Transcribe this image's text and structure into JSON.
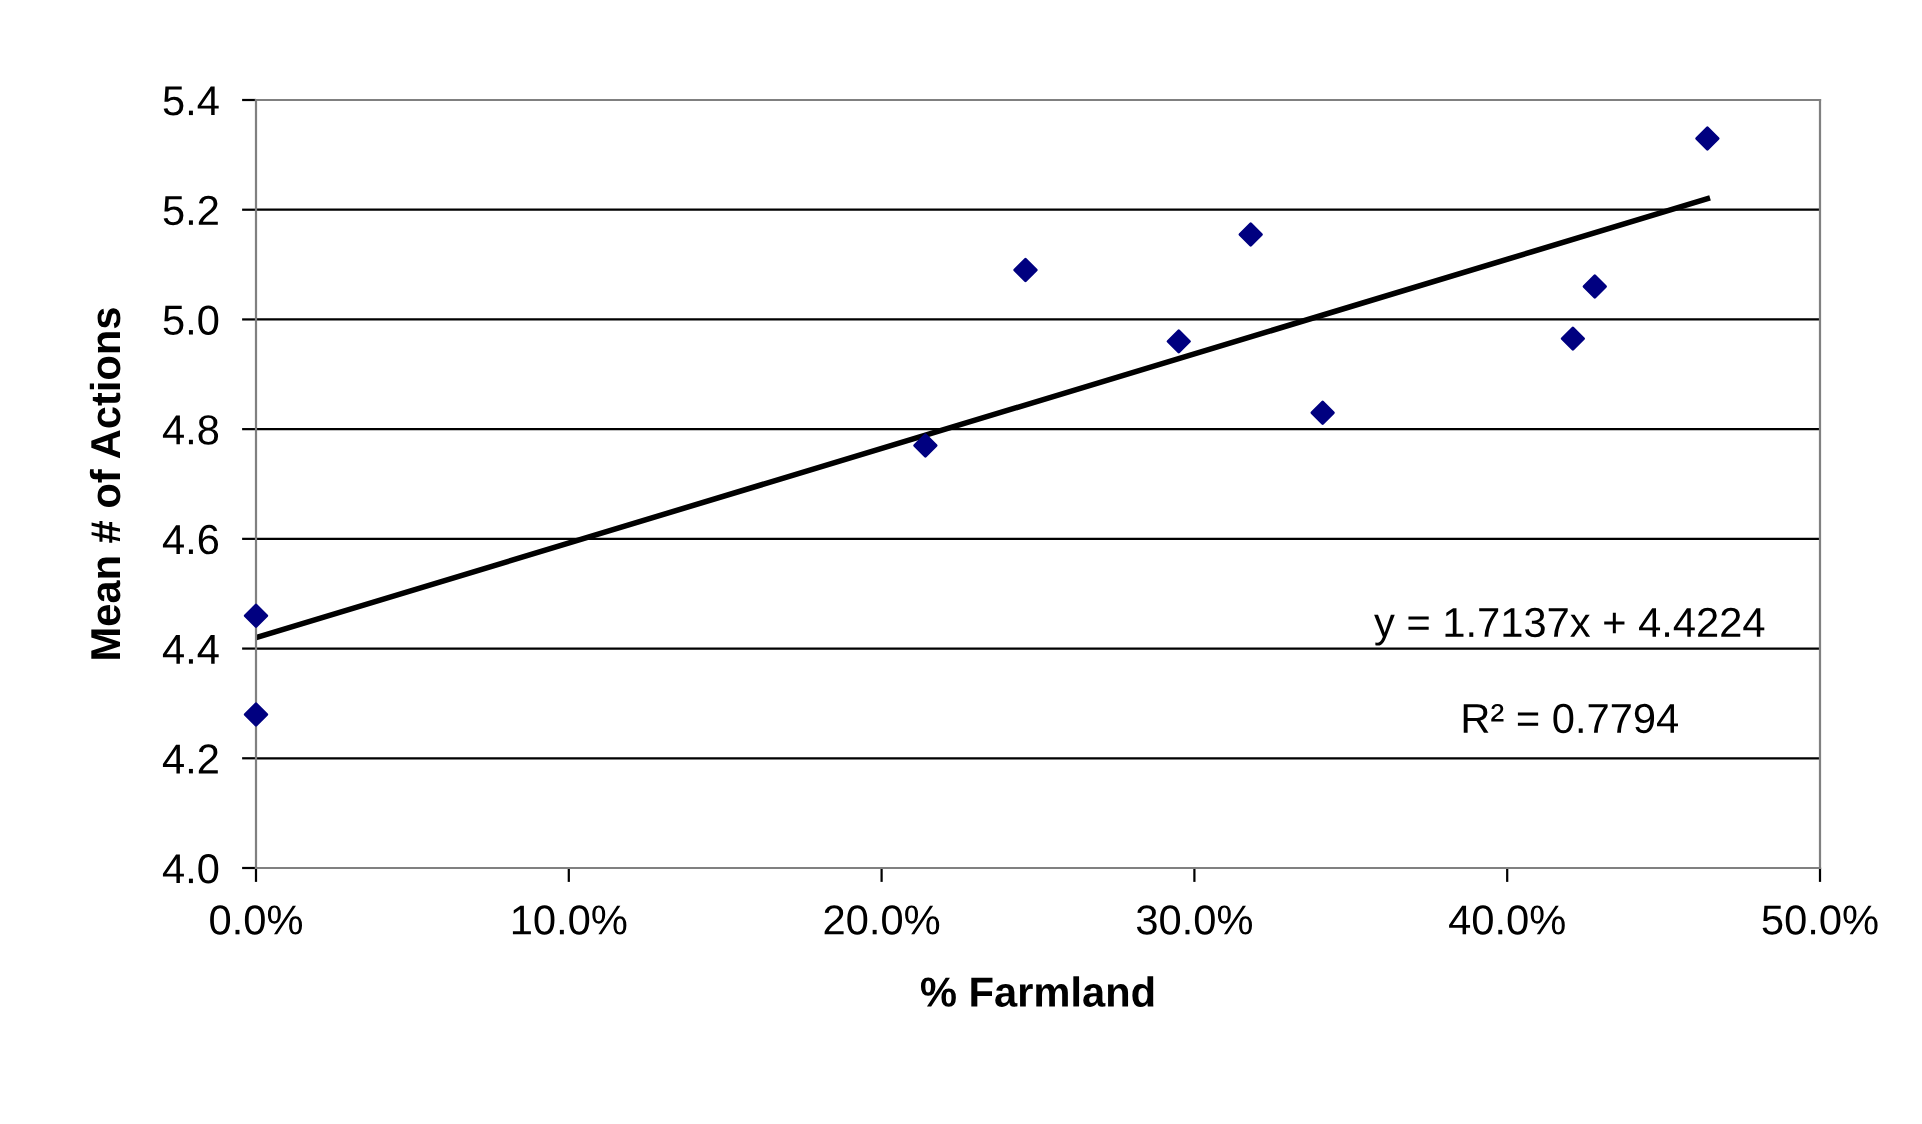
{
  "chart_data": {
    "type": "scatter",
    "xlabel": "% Farmland",
    "ylabel": "Mean # of Actions",
    "series": [
      {
        "color": "#000080",
        "marker": "diamond",
        "x": [
          0.0,
          0.0,
          0.214,
          0.246,
          0.295,
          0.318,
          0.341,
          0.421,
          0.428,
          0.464
        ],
        "values": [
          4.28,
          4.46,
          4.77,
          5.09,
          4.96,
          5.155,
          4.83,
          4.965,
          5.06,
          5.33
        ]
      },
      {
        "type": "line",
        "color": "#000000",
        "marker": "none",
        "x": [
          0.0,
          0.464
        ],
        "values": [
          4.42,
          5.22
        ]
      }
    ],
    "annotations": [
      "y = 1.7137x + 4.4224",
      "R² = 0.7794"
    ],
    "xlim": [
      0,
      0.5
    ],
    "xticks": [
      {
        "value": 0,
        "label": "0.0%"
      },
      {
        "value": 0.1,
        "label": "10.0%"
      },
      {
        "value": 0.2,
        "label": "20.0%"
      },
      {
        "value": 0.3,
        "label": "30.0%"
      },
      {
        "value": 0.4,
        "label": "40.0%"
      },
      {
        "value": 0.5,
        "label": "50.0%"
      }
    ],
    "ylim": [
      4.0,
      5.4
    ],
    "yticks": [
      {
        "value": 4.0,
        "label": "4.0"
      },
      {
        "value": 4.2,
        "label": "4.2"
      },
      {
        "value": 4.4,
        "label": "4.4"
      },
      {
        "value": 4.6,
        "label": "4.6"
      },
      {
        "value": 4.8,
        "label": "4.8"
      },
      {
        "value": 5.0,
        "label": "5.0"
      },
      {
        "value": 5.2,
        "label": "5.2"
      },
      {
        "value": 5.4,
        "label": "5.4"
      }
    ],
    "grid": "y",
    "legend": false
  }
}
